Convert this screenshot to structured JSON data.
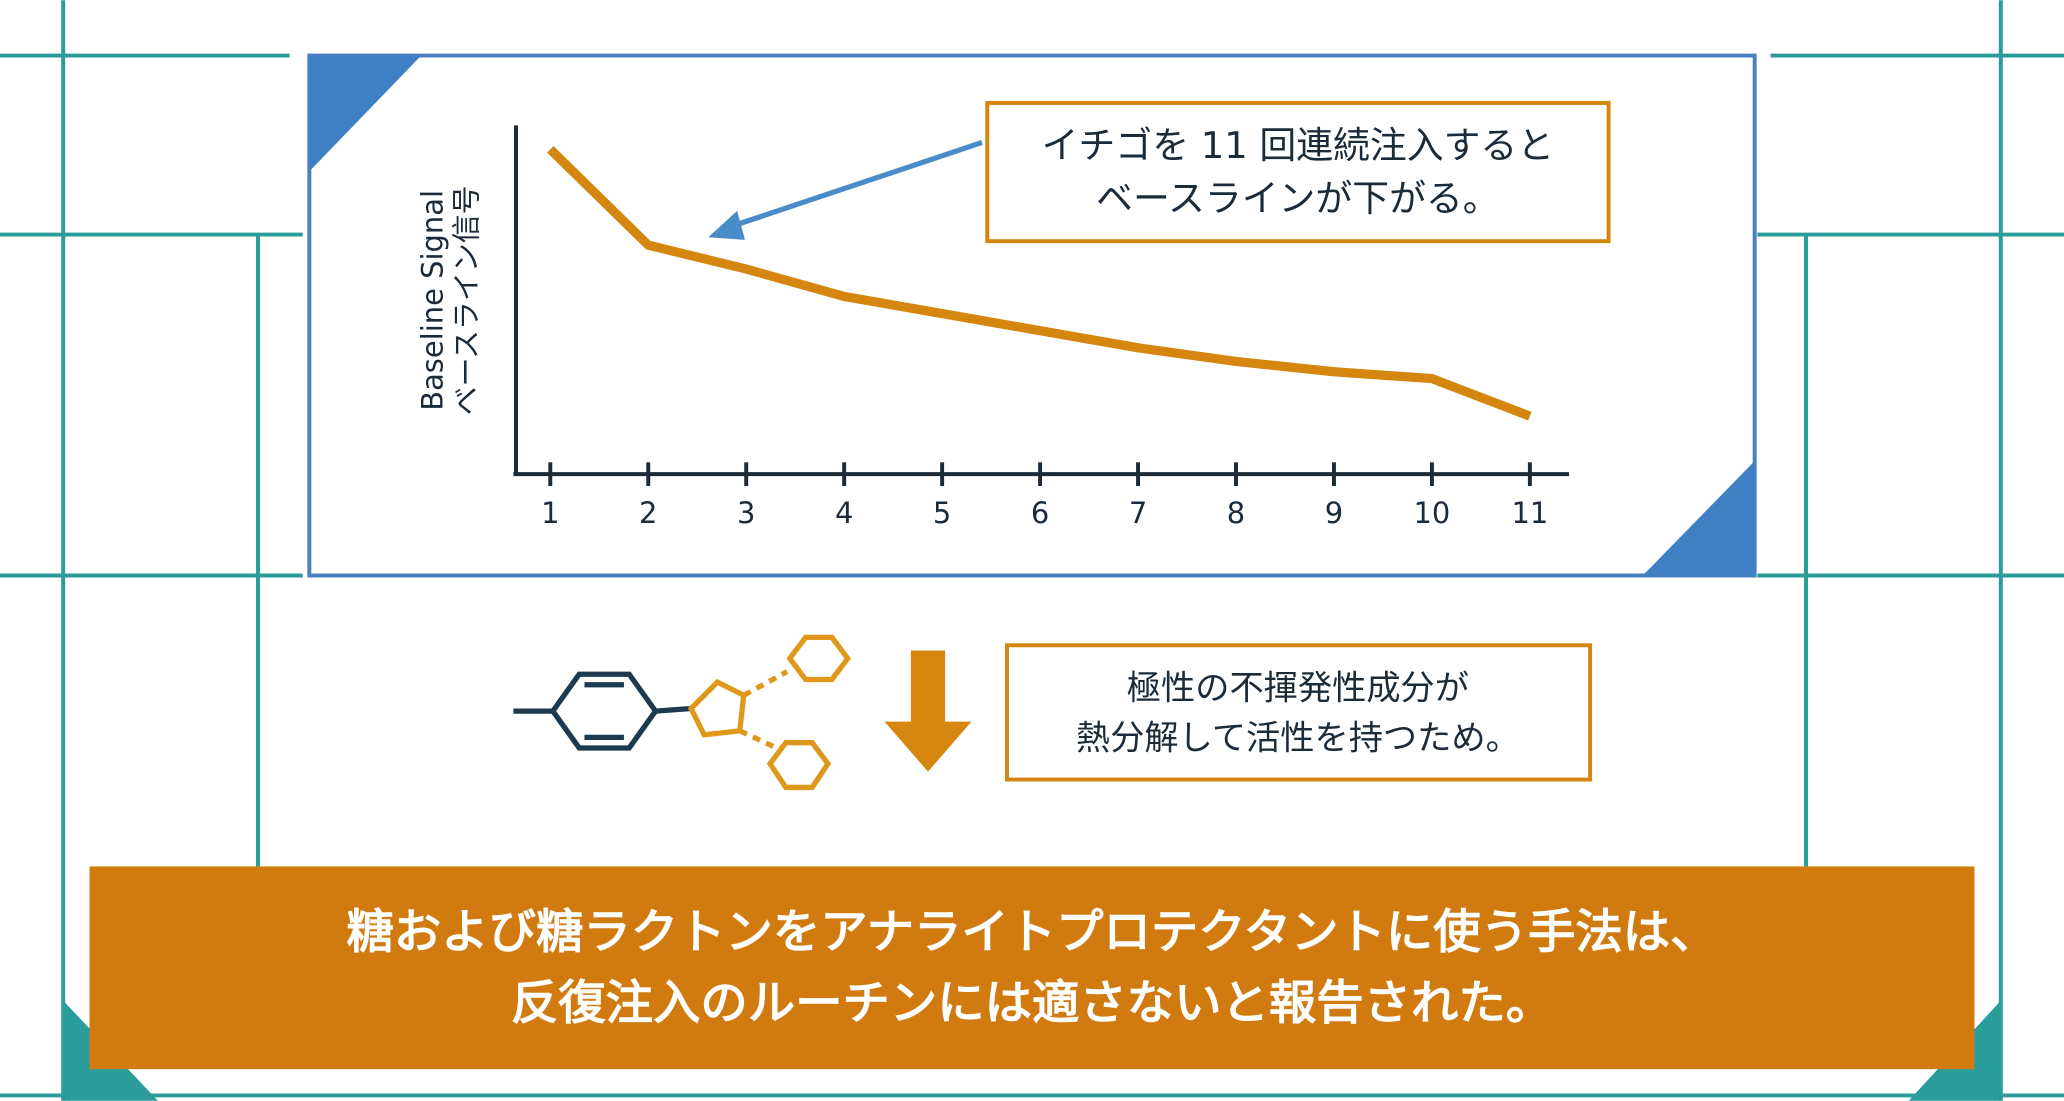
{
  "chart_data": {
    "type": "line",
    "ylabel": [
      "Baseline Signal",
      "ベースライン信号"
    ],
    "x": [
      1,
      2,
      3,
      4,
      5,
      6,
      7,
      8,
      9,
      10,
      11
    ],
    "xticks": [
      1,
      2,
      3,
      4,
      5,
      6,
      7,
      8,
      9,
      10,
      11
    ],
    "xlim": [
      0.65,
      11.4
    ],
    "ylim": [
      0,
      100
    ],
    "series": [
      {
        "color": "#d4860f",
        "values": [
          93,
          65,
          58,
          50,
          45,
          40,
          35,
          31,
          28,
          26,
          15
        ]
      }
    ],
    "annotations": {
      "callout": [
        "イチゴを 11 回連続注入すると",
        "ベースラインが下がる。"
      ],
      "note": [
        "極性の不揮発性成分が",
        "熱分解して活性を持つため。"
      ],
      "banner": [
        "糖および糖ラクトンをアナライトプロテクタントに使う手法は、",
        "反復注入のルーチンには適さないと報告された。"
      ]
    }
  }
}
